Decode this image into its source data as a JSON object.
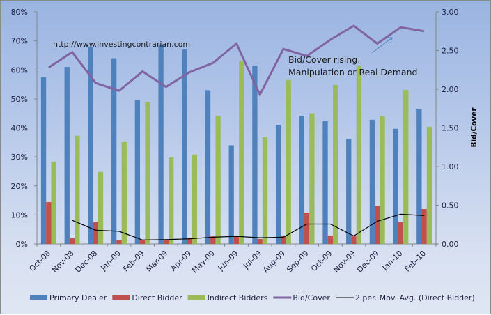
{
  "chart_data": {
    "type": "bar",
    "title": "",
    "categories": [
      "Oct-08",
      "Nov-08",
      "Dec-08",
      "Jan-09",
      "Feb-09",
      "Mar-09",
      "Apr-09",
      "May-09",
      "Jun-09",
      "Jul-09",
      "Aug-09",
      "Sep-09",
      "Oct-09",
      "Nov-09",
      "Dec-09",
      "Jan-10",
      "Feb-10"
    ],
    "left_axis": {
      "label": "",
      "ylim": [
        0,
        0.8
      ],
      "ticks": [
        0,
        0.1,
        0.2,
        0.3,
        0.4,
        0.5,
        0.6,
        0.7,
        0.8
      ],
      "tick_labels": [
        "0%",
        "10%",
        "20%",
        "30%",
        "40%",
        "50%",
        "60%",
        "70%",
        "80%"
      ]
    },
    "right_axis": {
      "label": "Bid/Cover",
      "ylim": [
        0,
        3.0
      ],
      "ticks": [
        0,
        0.5,
        1.0,
        1.5,
        2.0,
        2.5,
        3.0
      ],
      "tick_labels": [
        "0.00",
        "0.50",
        "1.00",
        "1.50",
        "2.00",
        "2.50",
        "3.00"
      ]
    },
    "series": [
      {
        "name": "Primary Dealer",
        "kind": "bar",
        "axis": "left",
        "color": "#4f81bd",
        "values": [
          0.575,
          0.61,
          0.68,
          0.64,
          0.495,
          0.688,
          0.67,
          0.53,
          0.34,
          0.615,
          0.41,
          0.442,
          0.423,
          0.362,
          0.428,
          0.397,
          0.466
        ]
      },
      {
        "name": "Direct Bidder",
        "kind": "bar",
        "axis": "left",
        "color": "#c0504d",
        "values": [
          0.144,
          0.019,
          0.075,
          0.012,
          0.015,
          0.015,
          0.02,
          0.026,
          0.026,
          0.017,
          0.029,
          0.108,
          0.029,
          0.026,
          0.13,
          0.075,
          0.12
        ]
      },
      {
        "name": "Indirect Bidders",
        "kind": "bar",
        "axis": "left",
        "color": "#9bbb59",
        "values": [
          0.284,
          0.373,
          0.248,
          0.351,
          0.49,
          0.298,
          0.308,
          0.442,
          0.63,
          0.368,
          0.565,
          0.45,
          0.548,
          0.613,
          0.44,
          0.531,
          0.404
        ]
      },
      {
        "name": "Bid/Cover",
        "kind": "line",
        "axis": "right",
        "color": "#8064a2",
        "values": [
          2.28,
          2.48,
          2.08,
          1.98,
          2.23,
          2.03,
          2.22,
          2.34,
          2.59,
          1.93,
          2.52,
          2.43,
          2.64,
          2.82,
          2.59,
          2.8,
          2.75
        ]
      },
      {
        "name": "2 per. Mov. Avg. (Direct Bidder)",
        "kind": "line",
        "axis": "left",
        "color": "#000000",
        "values": [
          null,
          0.0815,
          0.047,
          0.0435,
          0.0135,
          0.015,
          0.0175,
          0.023,
          0.026,
          0.0215,
          0.023,
          0.0685,
          0.0685,
          0.0275,
          0.078,
          0.1025,
          0.0975
        ]
      }
    ],
    "legend": {
      "position": "bottom"
    },
    "grid": false,
    "annotations": [
      {
        "text": "http://www.investingcontrarian.com"
      },
      {
        "text": "Bid/Cover rising:"
      },
      {
        "text": "Manipulation or Real Demand"
      }
    ]
  }
}
